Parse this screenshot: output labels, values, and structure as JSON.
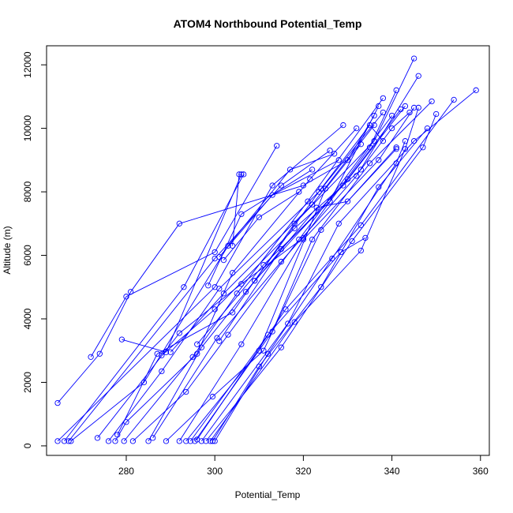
{
  "chart_data": {
    "type": "line",
    "title": "ATOM4 Northbound Potential_Temp",
    "xlabel": "Potential_Temp",
    "ylabel": "Altitude (m)",
    "xlim": [
      262,
      362
    ],
    "ylim": [
      -300,
      12600
    ],
    "x_ticks": [
      280,
      300,
      320,
      340,
      360
    ],
    "y_ticks": [
      0,
      2000,
      4000,
      6000,
      8000,
      10000,
      12000
    ],
    "grid": false,
    "colors": {
      "series": "#0000ff"
    },
    "series": [
      {
        "values": [
          [
            264.5,
            1350
          ],
          [
            274,
            2900
          ],
          [
            281,
            4850
          ],
          [
            292,
            7000
          ],
          [
            320,
            8200
          ],
          [
            330,
            9000
          ],
          [
            336,
            10400
          ]
        ]
      },
      {
        "values": [
          [
            272,
            2800
          ],
          [
            280,
            4700
          ],
          [
            300,
            6100
          ],
          [
            314,
            9450
          ]
        ]
      },
      {
        "values": [
          [
            279,
            3350
          ],
          [
            289,
            2950
          ],
          [
            306,
            8550
          ],
          [
            305.5,
            8550
          ],
          [
            304,
            6300
          ]
        ]
      },
      {
        "values": [
          [
            264.5,
            150
          ],
          [
            300,
            5000
          ],
          [
            313,
            8200
          ],
          [
            329,
            10100
          ]
        ]
      },
      {
        "values": [
          [
            266,
            150
          ],
          [
            293,
            5000
          ],
          [
            306.5,
            8550
          ]
        ]
      },
      {
        "values": [
          [
            267,
            150
          ],
          [
            300,
            5900
          ],
          [
            315,
            8200
          ],
          [
            326,
            9300
          ]
        ]
      },
      {
        "values": [
          [
            267.5,
            150
          ],
          [
            284,
            2000
          ],
          [
            303,
            6300
          ],
          [
            317,
            8700
          ],
          [
            327,
            9200
          ]
        ]
      },
      {
        "values": [
          [
            273.5,
            250
          ],
          [
            292,
            3550
          ],
          [
            306,
            5100
          ],
          [
            320,
            6550
          ],
          [
            335,
            9400
          ],
          [
            341,
            11200
          ]
        ]
      },
      {
        "values": [
          [
            276,
            150
          ],
          [
            288,
            2350
          ],
          [
            301,
            4950
          ],
          [
            323.5,
            8000
          ],
          [
            338,
            10500
          ]
        ]
      },
      {
        "values": [
          [
            277.5,
            150
          ],
          [
            280,
            750
          ],
          [
            296,
            2900
          ],
          [
            304,
            5450
          ],
          [
            321.5,
            8400
          ],
          [
            332,
            10000
          ]
        ]
      },
      {
        "values": [
          [
            278,
            350
          ],
          [
            287,
            2900
          ],
          [
            304,
            4200
          ],
          [
            318,
            7000
          ],
          [
            336,
            9600
          ],
          [
            345,
            12200
          ]
        ]
      },
      {
        "values": [
          [
            279.5,
            150
          ],
          [
            295,
            2800
          ],
          [
            305,
            4800
          ],
          [
            321,
            7700
          ],
          [
            338,
            10950
          ]
        ]
      },
      {
        "values": [
          [
            281.5,
            150
          ],
          [
            293.5,
            1700
          ],
          [
            303,
            3500
          ],
          [
            319,
            6500
          ],
          [
            340,
            10400
          ]
        ]
      },
      {
        "values": [
          [
            285,
            150
          ],
          [
            297,
            3100
          ],
          [
            309,
            5200
          ],
          [
            330,
            8400
          ],
          [
            342,
            10600
          ]
        ]
      },
      {
        "values": [
          [
            286,
            250
          ],
          [
            300.5,
            3400
          ],
          [
            315,
            5800
          ],
          [
            332,
            8500
          ],
          [
            346,
            11650
          ]
        ]
      },
      {
        "values": [
          [
            289,
            150
          ],
          [
            299.5,
            1550
          ],
          [
            311,
            3000
          ],
          [
            324,
            6800
          ],
          [
            341,
            9350
          ]
        ]
      },
      {
        "values": [
          [
            292,
            150
          ],
          [
            306,
            3200
          ],
          [
            320,
            6500
          ],
          [
            337,
            9000
          ],
          [
            345,
            10650
          ]
        ]
      },
      {
        "values": [
          [
            293.5,
            150
          ],
          [
            310,
            3000
          ],
          [
            325,
            8100
          ],
          [
            333,
            9500
          ]
        ]
      },
      {
        "values": [
          [
            294.5,
            150
          ],
          [
            312,
            3500
          ],
          [
            328.5,
            6100
          ],
          [
            334,
            6550
          ]
        ]
      },
      {
        "values": [
          [
            295.5,
            150
          ],
          [
            313,
            3600
          ],
          [
            322,
            6500
          ],
          [
            335,
            8900
          ],
          [
            349,
            10850
          ]
        ]
      },
      {
        "values": [
          [
            296,
            200
          ],
          [
            316,
            4300
          ],
          [
            333,
            6950
          ],
          [
            354,
            10900
          ]
        ]
      },
      {
        "values": [
          [
            297,
            150
          ],
          [
            316.5,
            3850
          ],
          [
            328,
            7000
          ],
          [
            345,
            9600
          ],
          [
            359,
            11200
          ]
        ]
      },
      {
        "values": [
          [
            298,
            150
          ],
          [
            315,
            3100
          ],
          [
            331,
            6450
          ],
          [
            347,
            9400
          ],
          [
            350,
            10450
          ]
        ]
      },
      {
        "values": [
          [
            299,
            150
          ],
          [
            318,
            3900
          ],
          [
            333,
            6150
          ],
          [
            343,
            9350
          ],
          [
            346,
            10650
          ]
        ]
      },
      {
        "values": [
          [
            299.5,
            150
          ],
          [
            310,
            2500
          ],
          [
            324,
            5000
          ],
          [
            337,
            8150
          ],
          [
            348,
            10000
          ]
        ]
      },
      {
        "values": [
          [
            300,
            150
          ],
          [
            312,
            2900
          ],
          [
            326.5,
            5900
          ],
          [
            341,
            8900
          ],
          [
            343,
            9600
          ]
        ]
      },
      {
        "values": [
          [
            298.5,
            5050
          ],
          [
            306,
            7300
          ],
          [
            322,
            8700
          ]
        ]
      },
      {
        "values": [
          [
            301,
            5950
          ],
          [
            313,
            7900
          ],
          [
            328,
            9000
          ]
        ]
      },
      {
        "values": [
          [
            302,
            5850
          ],
          [
            310,
            7200
          ],
          [
            319,
            8000
          ]
        ]
      },
      {
        "values": [
          [
            288,
            2850
          ],
          [
            300,
            4300
          ],
          [
            318,
            6850
          ],
          [
            333,
            8700
          ],
          [
            340,
            10000
          ],
          [
            344,
            10500
          ]
        ]
      },
      {
        "values": [
          [
            290,
            2950
          ],
          [
            302,
            4800
          ],
          [
            322,
            7600
          ],
          [
            336,
            10100
          ]
        ]
      },
      {
        "values": [
          [
            296,
            3200
          ],
          [
            311,
            5700
          ],
          [
            326,
            7700
          ],
          [
            337,
            10700
          ]
        ]
      },
      {
        "values": [
          [
            301,
            3300
          ],
          [
            315,
            6200
          ],
          [
            329,
            8200
          ],
          [
            343,
            10700
          ]
        ]
      },
      {
        "values": [
          [
            307,
            4850
          ],
          [
            323,
            7500
          ],
          [
            330,
            7700
          ],
          [
            341,
            9400
          ]
        ]
      },
      {
        "values": [
          [
            309,
            5200
          ],
          [
            324,
            8100
          ],
          [
            335,
            10100
          ],
          [
            338,
            9600
          ]
        ]
      }
    ]
  }
}
